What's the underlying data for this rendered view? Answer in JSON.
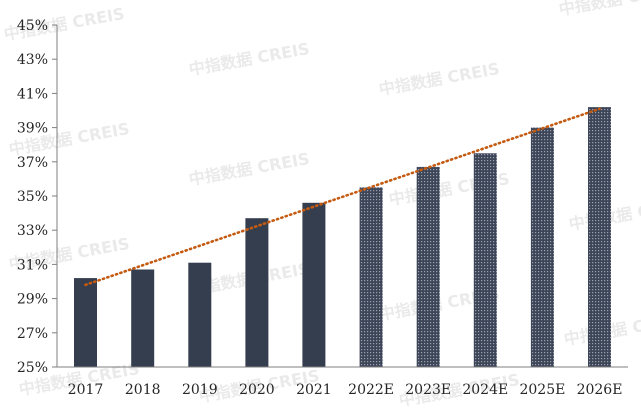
{
  "chart_data": {
    "type": "bar",
    "categories": [
      "2017",
      "2018",
      "2019",
      "2020",
      "2021",
      "2022E",
      "2023E",
      "2024E",
      "2025E",
      "2026E"
    ],
    "values": [
      30.2,
      30.7,
      31.1,
      33.7,
      34.6,
      35.5,
      36.7,
      37.5,
      39.0,
      40.2
    ],
    "projected": [
      false,
      false,
      false,
      false,
      false,
      true,
      true,
      true,
      true,
      true
    ],
    "y_ticks": [
      "25%",
      "27%",
      "29%",
      "31%",
      "33%",
      "35%",
      "37%",
      "39%",
      "41%",
      "43%",
      "45%"
    ],
    "ylim": [
      25,
      45
    ],
    "title": "",
    "xlabel": "",
    "ylabel": "",
    "grid": false,
    "trendline": {
      "style": "dotted",
      "from": 29.8,
      "to": 40.1
    },
    "colors": {
      "bar": "#353e4e",
      "trend": "#c55a11",
      "axis": "#7f7f7f",
      "text": "#262626"
    }
  },
  "watermark": {
    "text": "中指数据 CREIS"
  }
}
